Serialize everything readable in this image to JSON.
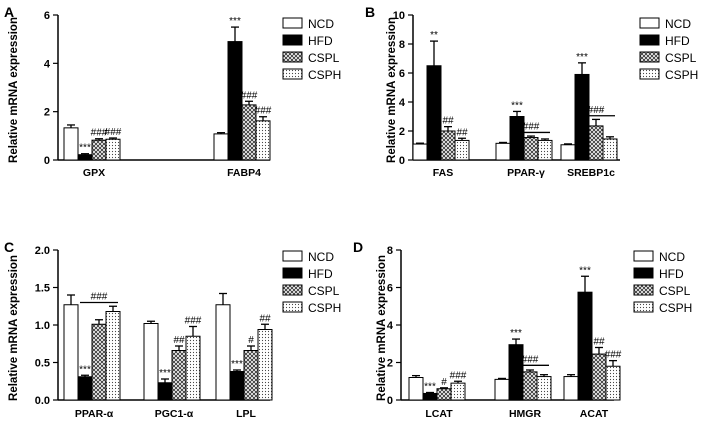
{
  "legend_labels": [
    "NCD",
    "HFD",
    "CSPL",
    "CSPH"
  ],
  "chart_data": [
    {
      "panel": "A",
      "type": "bar",
      "ylabel": "Relative mRNA expression",
      "ylim": [
        0,
        6
      ],
      "yticks": [
        0,
        2,
        4,
        6
      ],
      "categories": [
        "GPX",
        "FABP4"
      ],
      "series": [
        {
          "name": "NCD",
          "values": [
            1.33,
            1.08
          ],
          "errors": [
            0.12,
            0.05
          ],
          "marks": [
            "",
            ""
          ]
        },
        {
          "name": "HFD",
          "values": [
            0.22,
            4.9
          ],
          "errors": [
            0.04,
            0.6
          ],
          "marks": [
            "***",
            "***"
          ]
        },
        {
          "name": "CSPL",
          "values": [
            0.82,
            2.28
          ],
          "errors": [
            0.06,
            0.15
          ],
          "marks": [
            "###",
            "###"
          ]
        },
        {
          "name": "CSPH",
          "values": [
            0.86,
            1.62
          ],
          "errors": [
            0.05,
            0.17
          ],
          "marks": [
            "###",
            "###"
          ]
        }
      ],
      "group_bars": []
    },
    {
      "panel": "B",
      "type": "bar",
      "ylabel": "Relative mRNA expression",
      "ylim": [
        0,
        10
      ],
      "yticks": [
        0,
        2,
        4,
        6,
        8,
        10
      ],
      "categories": [
        "FAS",
        "PPAR-γ",
        "SREBP1c"
      ],
      "series": [
        {
          "name": "NCD",
          "values": [
            1.1,
            1.15,
            1.05
          ],
          "errors": [
            0.06,
            0.06,
            0.06
          ],
          "marks": [
            "",
            "",
            ""
          ]
        },
        {
          "name": "HFD",
          "values": [
            6.5,
            3.0,
            5.9
          ],
          "errors": [
            1.7,
            0.35,
            0.8
          ],
          "marks": [
            "**",
            "***",
            "***"
          ]
        },
        {
          "name": "CSPL",
          "values": [
            2.0,
            1.55,
            2.35
          ],
          "errors": [
            0.3,
            0.1,
            0.45
          ],
          "marks": [
            "##",
            "",
            ""
          ]
        },
        {
          "name": "CSPH",
          "values": [
            1.35,
            1.35,
            1.45
          ],
          "errors": [
            0.15,
            0.1,
            0.15
          ],
          "marks": [
            "##",
            "",
            ""
          ]
        }
      ],
      "group_bars": [
        {
          "category": 1,
          "label": "###",
          "level": 1.9
        },
        {
          "category": 2,
          "label": "###",
          "level": 3.05
        }
      ]
    },
    {
      "panel": "C",
      "type": "bar",
      "ylabel": "Relative mRNA expression",
      "ylim": [
        0,
        2.0
      ],
      "yticks": [
        0.0,
        0.5,
        1.0,
        1.5,
        2.0
      ],
      "categories": [
        "PPAR-α",
        "PGC1-α",
        "LPL"
      ],
      "series": [
        {
          "name": "NCD",
          "values": [
            1.27,
            1.02,
            1.27
          ],
          "errors": [
            0.13,
            0.03,
            0.15
          ],
          "marks": [
            "",
            "",
            ""
          ]
        },
        {
          "name": "HFD",
          "values": [
            0.31,
            0.23,
            0.38
          ],
          "errors": [
            0.02,
            0.05,
            0.02
          ],
          "marks": [
            "***",
            "***",
            "***"
          ]
        },
        {
          "name": "CSPL",
          "values": [
            1.01,
            0.66,
            0.66
          ],
          "errors": [
            0.06,
            0.06,
            0.06
          ],
          "marks": [
            "",
            "##",
            "#"
          ]
        },
        {
          "name": "CSPH",
          "values": [
            1.18,
            0.85,
            0.94
          ],
          "errors": [
            0.07,
            0.13,
            0.07
          ],
          "marks": [
            "",
            "###",
            "##"
          ]
        }
      ],
      "group_bars": [
        {
          "category": 0,
          "label": "###",
          "level": 1.3
        }
      ]
    },
    {
      "panel": "D",
      "type": "bar",
      "ylabel": "Relative mRNA expression",
      "ylim": [
        0,
        8
      ],
      "yticks": [
        0,
        2,
        4,
        6,
        8
      ],
      "categories": [
        "LCAT",
        "HMGR",
        "ACAT"
      ],
      "series": [
        {
          "name": "NCD",
          "values": [
            1.2,
            1.1,
            1.25
          ],
          "errors": [
            0.1,
            0.05,
            0.1
          ],
          "marks": [
            "",
            "",
            ""
          ]
        },
        {
          "name": "HFD",
          "values": [
            0.35,
            2.95,
            5.75
          ],
          "errors": [
            0.05,
            0.3,
            0.85
          ],
          "marks": [
            "***",
            "***",
            "***"
          ]
        },
        {
          "name": "CSPL",
          "values": [
            0.6,
            1.5,
            2.45
          ],
          "errors": [
            0.05,
            0.1,
            0.35
          ],
          "marks": [
            "#",
            "",
            "##"
          ]
        },
        {
          "name": "CSPH",
          "values": [
            0.9,
            1.25,
            1.8
          ],
          "errors": [
            0.1,
            0.1,
            0.3
          ],
          "marks": [
            "###",
            "",
            "###"
          ]
        }
      ],
      "group_bars": [
        {
          "category": 1,
          "label": "###",
          "level": 1.85
        }
      ]
    }
  ]
}
